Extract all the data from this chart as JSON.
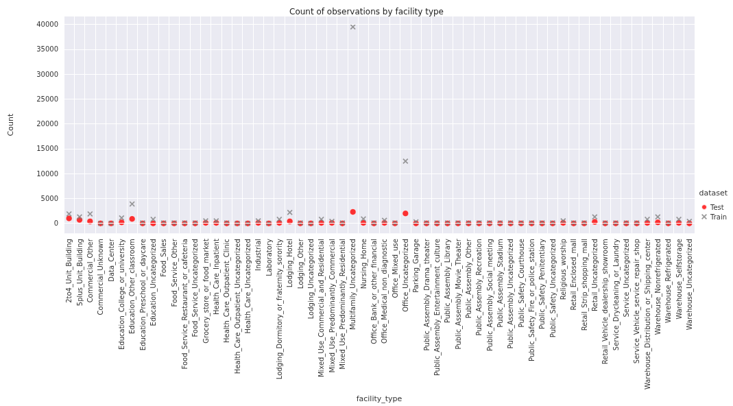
{
  "chart_data": {
    "type": "scatter",
    "title": "Count of observations by facility type",
    "xlabel": "facility_type",
    "ylabel": "Count",
    "legend_title": "dataset",
    "categories": [
      "2to4_Unit_Building",
      "5plus_Unit_Building",
      "Commercial_Other",
      "Commercial_Unknown",
      "Data_Center",
      "Education_College_or_university",
      "Education_Other_classroom",
      "Education_Preschool_or_daycare",
      "Education_Uncategorized",
      "Food_Sales",
      "Food_Service_Other",
      "Food_Service_Restaurant_or_cafeteria",
      "Food_Service_Uncategorized",
      "Grocery_store_or_food_market",
      "Health_Care_Inpatient",
      "Health_Care_Outpatient_Clinic",
      "Health_Care_Outpatient_Uncategorized",
      "Health_Care_Uncategorized",
      "Industrial",
      "Laboratory",
      "Lodging_Dormitory_or_fraternity_sorority",
      "Lodging_Hotel",
      "Lodging_Other",
      "Lodging_Uncategorized",
      "Mixed_Use_Commercial_and_Residential",
      "Mixed_Use_Predominantly_Commercial",
      "Mixed_Use_Predominantly_Residential",
      "Multifamily_Uncategorized",
      "Nursing_Home",
      "Office_Bank_or_other_financial",
      "Office_Medical_non_diagnostic",
      "Office_Mixed_use",
      "Office_Uncategorized",
      "Parking_Garage",
      "Public_Assembly_Drama_theater",
      "Public_Assembly_Entertainment_culture",
      "Public_Assembly_Library",
      "Public_Assembly_Movie_Theater",
      "Public_Assembly_Other",
      "Public_Assembly_Recreation",
      "Public_Assembly_Social_meeting",
      "Public_Assembly_Stadium",
      "Public_Assembly_Uncategorized",
      "Public_Safety_Courthouse",
      "Public_Safety_Fire_or_police_station",
      "Public_Safety_Penitentiary",
      "Public_Safety_Uncategorized",
      "Religious_worship",
      "Retail_Enclosed_mall",
      "Retail_Strip_shopping_mall",
      "Retail_Uncategorized",
      "Retail_Vehicle_dealership_showroom",
      "Service_Drycleaning_or_Laundry",
      "Service_Uncategorized",
      "Service_Vehicle_service_repair_shop",
      "Warehouse_Distribution_or_Shipping_center",
      "Warehouse_Nonrefrigerated",
      "Warehouse_Refrigerated",
      "Warehouse_Selfstorage",
      "Warehouse_Uncategorized"
    ],
    "series": [
      {
        "name": "Test",
        "color": "#ff0000",
        "marker": "circle",
        "values": [
          1000,
          700,
          400,
          0,
          0,
          200,
          900,
          0,
          0,
          0,
          0,
          0,
          0,
          100,
          100,
          0,
          0,
          0,
          100,
          0,
          100,
          400,
          0,
          0,
          100,
          100,
          0,
          2300,
          100,
          0,
          100,
          0,
          2000,
          0,
          0,
          0,
          0,
          0,
          0,
          0,
          0,
          0,
          0,
          0,
          0,
          0,
          0,
          100,
          0,
          0,
          300,
          0,
          0,
          0,
          0,
          100,
          200,
          0,
          100,
          0
        ]
      },
      {
        "name": "Train",
        "color": "#808080",
        "marker": "cross",
        "values": [
          1900,
          1300,
          1900,
          0,
          0,
          1100,
          3900,
          100,
          800,
          100,
          100,
          100,
          100,
          500,
          500,
          100,
          0,
          0,
          500,
          0,
          800,
          2200,
          100,
          0,
          800,
          400,
          100,
          39500,
          900,
          100,
          600,
          100,
          12500,
          300,
          100,
          100,
          100,
          100,
          100,
          100,
          100,
          100,
          100,
          100,
          100,
          100,
          100,
          500,
          100,
          100,
          1300,
          100,
          100,
          100,
          100,
          800,
          1300,
          100,
          800,
          400
        ]
      }
    ],
    "ylim": [
      -2000,
      41600
    ],
    "yticks": [
      0,
      5000,
      10000,
      15000,
      20000,
      25000,
      30000,
      35000,
      40000
    ],
    "grid": true,
    "legend": "right"
  }
}
